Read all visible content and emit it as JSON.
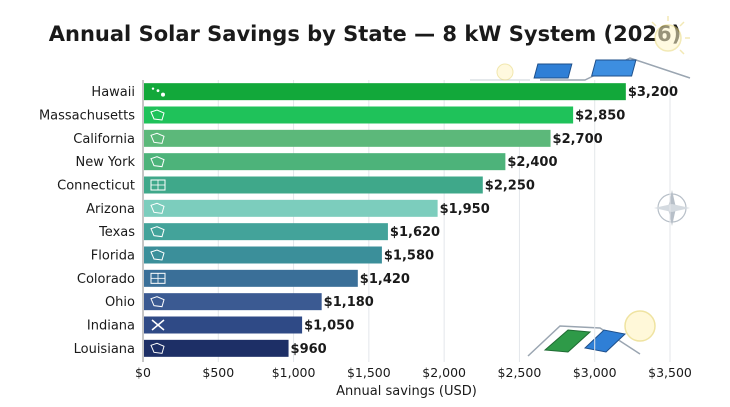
{
  "chart_data": {
    "type": "bar",
    "orientation": "horizontal",
    "title": "Annual Solar Savings by State — 8 kW System (2026)",
    "xlabel": "Annual savings (USD)",
    "ylabel": "",
    "xlim": [
      0,
      3500
    ],
    "x_ticks": [
      0,
      500,
      1000,
      1500,
      2000,
      2500,
      3000,
      3500
    ],
    "x_tick_labels": [
      "$0",
      "$500",
      "$1,000",
      "$1,500",
      "$2,000",
      "$2,500",
      "$3,000",
      "$3,500"
    ],
    "grid": "vertical",
    "categories": [
      "Hawaii",
      "Massachusetts",
      "California",
      "New York",
      "Connecticut",
      "Arizona",
      "Texas",
      "Florida",
      "Colorado",
      "Ohio",
      "Indiana",
      "Louisiana"
    ],
    "values": [
      3200,
      2850,
      2700,
      2400,
      2250,
      1950,
      1620,
      1580,
      1420,
      1180,
      1050,
      960
    ],
    "value_labels": [
      "$3,200",
      "$2,850",
      "$2,700",
      "$2,400",
      "$2,250",
      "$1,950",
      "$1,620",
      "$1,580",
      "$1,420",
      "$1,180",
      "$1,050",
      "$960"
    ],
    "bar_colors": [
      "#12a83a",
      "#1fc25a",
      "#5cb87a",
      "#4db37a",
      "#3fa88a",
      "#7ccdbd",
      "#43a39a",
      "#3b8f9a",
      "#3a6f98",
      "#3b5a92",
      "#2f4a86",
      "#1d2f66"
    ],
    "bar_icons": [
      "islands-icon",
      "state-outline-icon",
      "state-outline-icon",
      "state-outline-icon",
      "solar-panel-icon",
      "state-outline-icon",
      "state-outline-icon",
      "state-outline-icon",
      "solar-panel-icon",
      "state-outline-icon",
      "tools-icon",
      "state-outline-icon"
    ]
  },
  "decorations": [
    "sun-icon",
    "solar-roof-icon",
    "compass-icon"
  ]
}
